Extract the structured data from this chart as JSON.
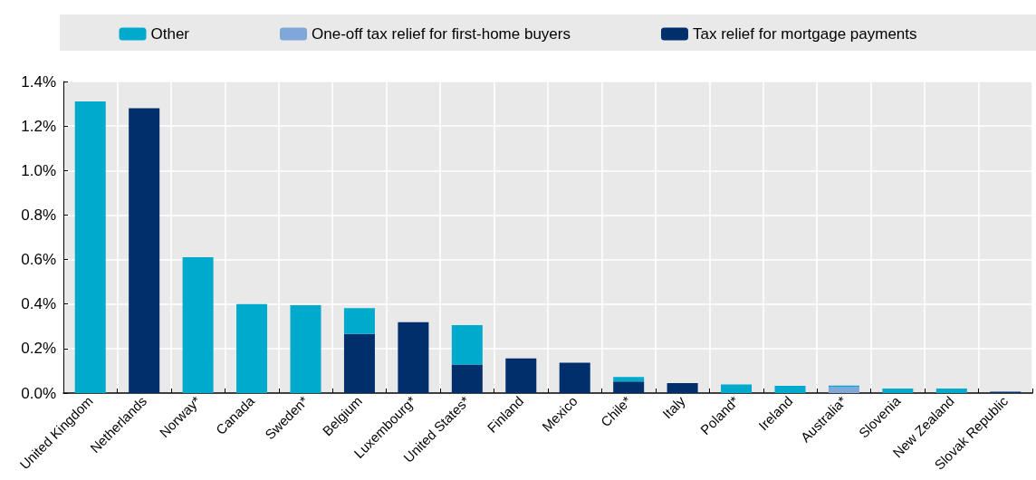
{
  "chart_data": {
    "type": "bar",
    "stacked": true,
    "categories": [
      "United Kingdom",
      "Netherlands",
      "Norway*",
      "Canada",
      "Sweden*",
      "Belgium",
      "Luxembourg*",
      "United States*",
      "Finland",
      "Mexico",
      "Chile*",
      "Italy",
      "Poland*",
      "Ireland",
      "Australia*",
      "Slovenia",
      "New Zealand",
      "Slovak Republic"
    ],
    "series": [
      {
        "name": "Tax relief for mortgage payments",
        "color": "#002f6c",
        "values": [
          null,
          1.28,
          null,
          null,
          null,
          0.266,
          0.318,
          0.128,
          0.156,
          0.136,
          0.052,
          0.045,
          null,
          null,
          null,
          null,
          null,
          0.006
        ]
      },
      {
        "name": "One-off tax relief for first-home buyers",
        "color": "#7fa8d9",
        "values": [
          null,
          null,
          null,
          null,
          null,
          null,
          null,
          null,
          null,
          null,
          null,
          null,
          null,
          null,
          0.028,
          null,
          null,
          null
        ]
      },
      {
        "name": "Other",
        "color": "#00aacc",
        "values": [
          1.31,
          null,
          0.61,
          0.4,
          0.395,
          0.116,
          null,
          0.177,
          null,
          null,
          0.02,
          null,
          0.039,
          0.033,
          0.006,
          0.02,
          0.02,
          null
        ]
      }
    ],
    "ylim": [
      0,
      1.4
    ],
    "yticks": [
      {
        "value": 0,
        "label": "0.0%"
      },
      {
        "value": 0.2,
        "label": "0.2%"
      },
      {
        "value": 0.4,
        "label": "0.4%"
      },
      {
        "value": 0.6,
        "label": "0.6%"
      },
      {
        "value": 0.8,
        "label": "0.8%"
      },
      {
        "value": 1.0,
        "label": "1.0%"
      },
      {
        "value": 1.2,
        "label": "1.2%"
      },
      {
        "value": 1.4,
        "label": "1.4%"
      }
    ],
    "grid": true,
    "legend": "top"
  }
}
